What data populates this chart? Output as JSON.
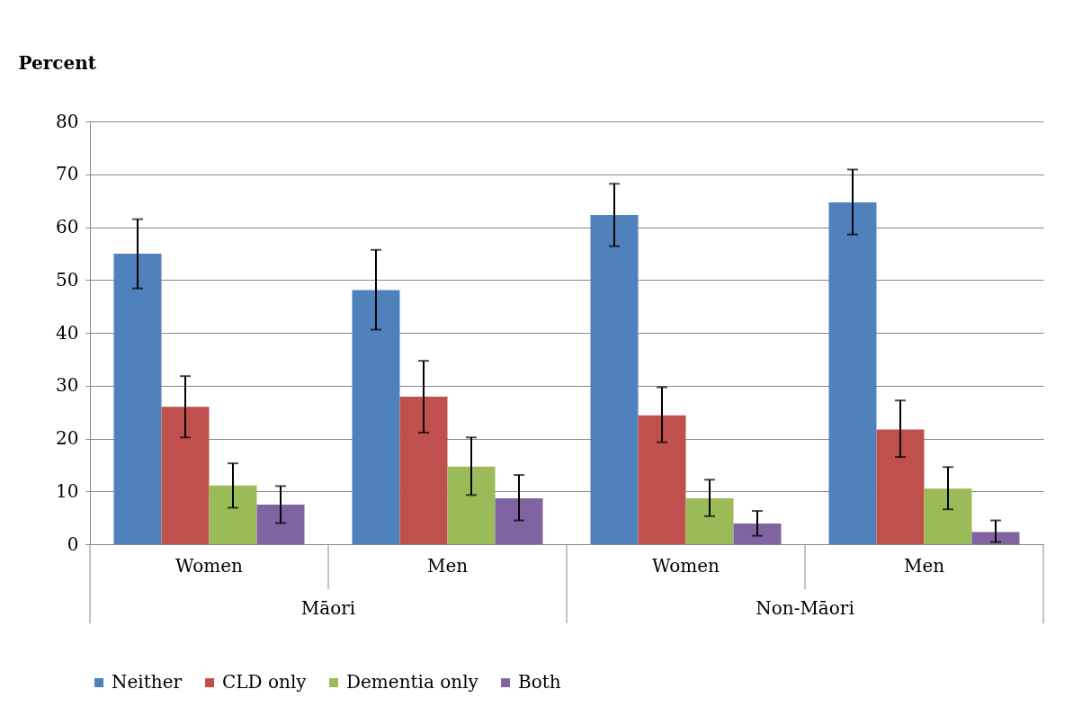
{
  "chart_data": {
    "type": "bar",
    "ylabel": "Percent",
    "categories": [
      "Women",
      "Men",
      "Women",
      "Men"
    ],
    "ylim": [
      0,
      80
    ],
    "yticks": [
      0,
      10,
      20,
      30,
      40,
      50,
      60,
      70,
      80
    ],
    "grid": "y",
    "legend": "bottom",
    "annotations": [
      "Māori",
      "Non-Māori"
    ],
    "series": [
      {
        "name": "Neither",
        "color": "#4f81bd",
        "values": [
          55.0,
          48.1,
          62.3,
          64.7
        ],
        "errors": [
          [
            48.4,
            61.5
          ],
          [
            40.6,
            55.7
          ],
          [
            56.4,
            68.2
          ],
          [
            58.6,
            70.9
          ]
        ]
      },
      {
        "name": "CLD only",
        "color": "#c0504d",
        "values": [
          26.0,
          27.9,
          24.4,
          21.7
        ],
        "errors": [
          [
            20.2,
            31.8
          ],
          [
            21.1,
            34.7
          ],
          [
            19.3,
            29.7
          ],
          [
            16.5,
            27.2
          ]
        ]
      },
      {
        "name": "Dementia only",
        "color": "#9bbb59",
        "values": [
          11.1,
          14.7,
          8.7,
          10.5
        ],
        "errors": [
          [
            6.9,
            15.3
          ],
          [
            9.3,
            20.2
          ],
          [
            5.3,
            12.2
          ],
          [
            6.6,
            14.6
          ]
        ]
      },
      {
        "name": "Both",
        "color": "#8064a2",
        "values": [
          7.5,
          8.7,
          3.9,
          2.3
        ],
        "errors": [
          [
            4.0,
            11.0
          ],
          [
            4.5,
            13.1
          ],
          [
            1.6,
            6.3
          ],
          [
            0.4,
            4.5
          ]
        ]
      }
    ]
  }
}
